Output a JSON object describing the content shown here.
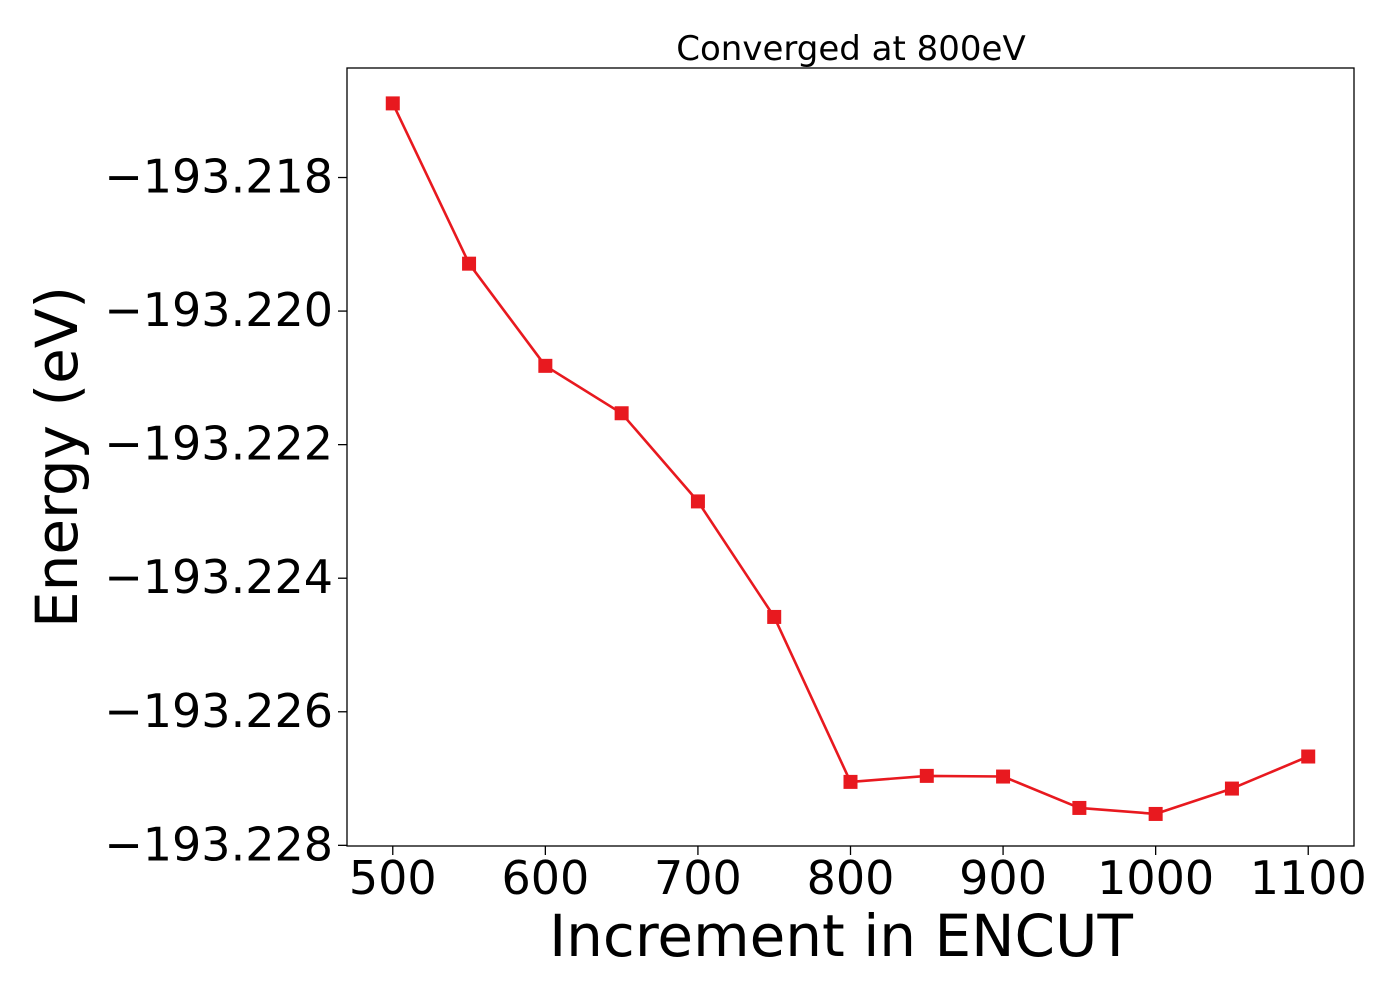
{
  "chart_data": {
    "type": "line",
    "title": "Converged at 800eV",
    "xlabel": "Increment in ENCUT",
    "ylabel": "Energy (eV)",
    "x": [
      500,
      550,
      600,
      650,
      700,
      750,
      800,
      850,
      900,
      950,
      1000,
      1050,
      1100
    ],
    "series": [
      {
        "values": [
          -193.21689,
          -193.21929,
          -193.22082,
          -193.22153,
          -193.22285,
          -193.22458,
          -193.22705,
          -193.22696,
          -193.22697,
          -193.22744,
          -193.22753,
          -193.22715,
          -193.22667
        ],
        "color": "#e8191f",
        "marker": "square"
      }
    ],
    "xlim": [
      470,
      1130
    ],
    "ylim": [
      -193.22801,
      -193.21636
    ],
    "xticks": [
      500,
      600,
      700,
      800,
      900,
      1000,
      1100
    ],
    "xtick_labels": [
      "500",
      "600",
      "700",
      "800",
      "900",
      "1000",
      "1100"
    ],
    "yticks": [
      -193.218,
      -193.22,
      -193.222,
      -193.224,
      -193.226,
      -193.228
    ],
    "ytick_labels": [
      "−193.218",
      "−193.220",
      "−193.222",
      "−193.224",
      "−193.226",
      "−193.228"
    ],
    "grid": false,
    "legend": "none"
  }
}
